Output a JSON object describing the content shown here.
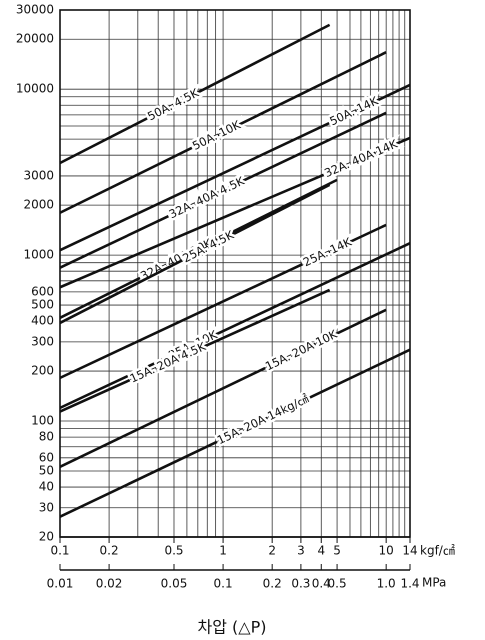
{
  "chart_data": {
    "type": "line",
    "xscale": "log",
    "yscale": "log",
    "grid": true,
    "color": "#111111",
    "xlim": [
      0.1,
      14
    ],
    "xticks": [
      0.1,
      0.2,
      0.5,
      1,
      2,
      3,
      4,
      5,
      10,
      14
    ],
    "x_minor_ticks": [
      0.3,
      0.4,
      0.6,
      0.7,
      0.8,
      0.9,
      6,
      7,
      8,
      9,
      11,
      12,
      13
    ],
    "xlabel": "kgf/㎠",
    "x2lim": [
      0.01,
      1.4
    ],
    "x2ticks": [
      0.01,
      0.02,
      0.05,
      0.1,
      0.2,
      0.3,
      0.4,
      0.5,
      {
        "value": 1,
        "label": "1.0"
      },
      1.4
    ],
    "x2label": "MPa",
    "ylim": [
      20,
      30000
    ],
    "yticks": [
      20,
      30,
      40,
      50,
      60,
      80,
      100,
      200,
      300,
      400,
      500,
      600,
      1000,
      2000,
      3000,
      10000,
      20000,
      30000
    ],
    "y_minor_ticks": [
      70,
      90,
      700,
      800,
      900,
      4000,
      5000,
      6000,
      7000,
      8000,
      9000
    ],
    "caption": "차압 (△P)",
    "series": [
      {
        "name": "50A. 4.5K",
        "x": [
          0.1,
          4.5
        ],
        "values": [
          3590,
          24400
        ]
      },
      {
        "name": "50A. 10K",
        "x": [
          0.1,
          10
        ],
        "values": [
          1800,
          16700
        ]
      },
      {
        "name": "50A. 14K",
        "x": [
          0.1,
          14
        ],
        "values": [
          1070,
          10600
        ]
      },
      {
        "name": "32A. 40A 4.5K",
        "x": [
          0.1,
          10
        ],
        "values": [
          840,
          7200
        ]
      },
      {
        "name": "32A. 40A 14K",
        "x": [
          0.1,
          14
        ],
        "values": [
          640,
          5080
        ]
      },
      {
        "name": "32A. 40A 10K",
        "x": [
          0.1,
          5
        ],
        "values": [
          419,
          2840
        ]
      },
      {
        "name": "25A. 4.5K",
        "x": [
          0.1,
          4.5
        ],
        "values": [
          390,
          2650
        ]
      },
      {
        "name": "25A. 14K",
        "x": [
          0.1,
          10
        ],
        "values": [
          182,
          1520
        ]
      },
      {
        "name": "25A. 10K",
        "x": [
          0.1,
          14
        ],
        "values": [
          120,
          1180
        ]
      },
      {
        "name": "15A. 20A 4.5K",
        "x": [
          0.1,
          4.5
        ],
        "values": [
          114,
          617
        ]
      },
      {
        "name": "15A. 20A 10K",
        "x": [
          0.1,
          10
        ],
        "values": [
          53,
          468
        ]
      },
      {
        "name": "15A. 20A 14kg/㎠",
        "x": [
          0.1,
          14
        ],
        "values": [
          26.5,
          269
        ]
      }
    ]
  }
}
